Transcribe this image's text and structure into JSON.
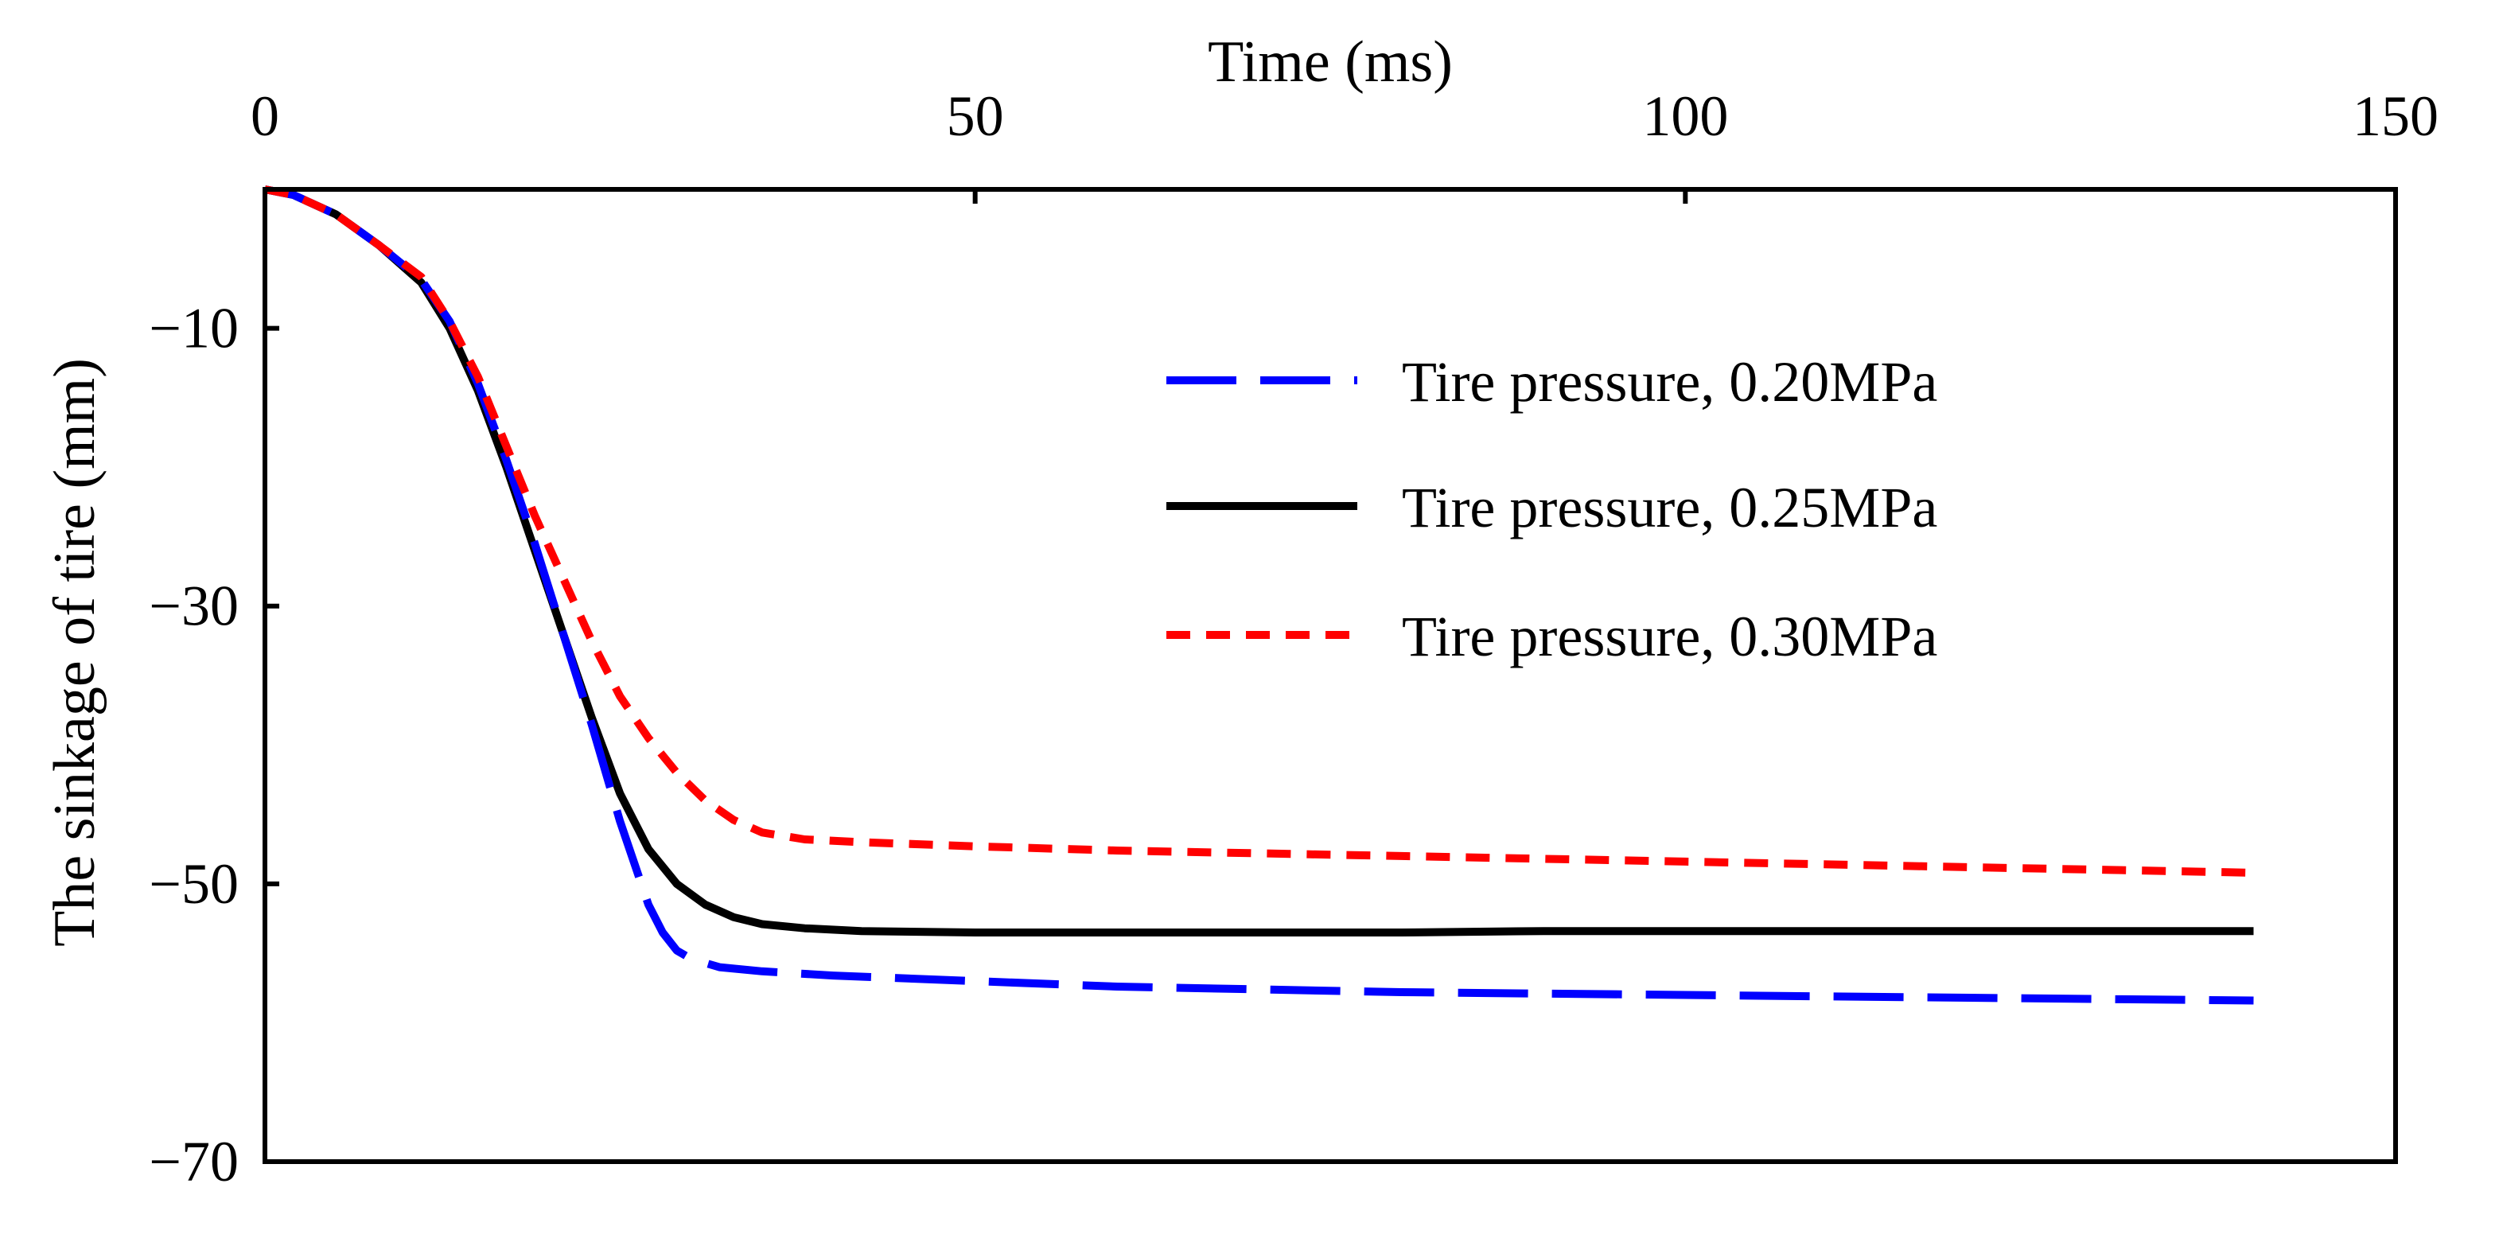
{
  "chart_data": {
    "type": "line",
    "title": "",
    "xlabel": "Time (ms)",
    "ylabel": "The sinkage of tire (mm)",
    "xlim": [
      0,
      150
    ],
    "ylim": [
      -70,
      0
    ],
    "xticks": [
      0,
      50,
      100,
      150
    ],
    "yticks": [
      -10,
      -30,
      -50,
      -70
    ],
    "xtick_labels": [
      "0",
      "50",
      "100",
      "150"
    ],
    "ytick_labels": [
      "−10",
      "−30",
      "−50",
      "−70"
    ],
    "x_axis_position": "top",
    "grid": false,
    "legend_position": "upper-right",
    "series": [
      {
        "name": "Tire pressure, 0.20MPa",
        "color": "#0000ff",
        "dash": "long-dash",
        "x": [
          0,
          2,
          5,
          8,
          11,
          13,
          15,
          17,
          19,
          21,
          23,
          25,
          27,
          28,
          29,
          30,
          32,
          35,
          40,
          50,
          60,
          70,
          80,
          90,
          100,
          110,
          120,
          130,
          140
        ],
        "y": [
          0,
          -0.4,
          -1.8,
          -4,
          -6.5,
          -9.5,
          -14,
          -19.5,
          -25.5,
          -32,
          -38.5,
          -45.5,
          -51.5,
          -53.5,
          -54.8,
          -55.4,
          -56,
          -56.3,
          -56.6,
          -57,
          -57.4,
          -57.6,
          -57.8,
          -57.9,
          -58,
          -58.1,
          -58.2,
          -58.3,
          -58.4
        ]
      },
      {
        "name": "Tire pressure, 0.25MPa",
        "color": "#000000",
        "dash": "solid",
        "x": [
          0,
          2,
          5,
          8,
          11,
          13,
          15,
          17,
          19,
          21,
          23,
          25,
          27,
          29,
          31,
          33,
          35,
          38,
          42,
          50,
          60,
          70,
          80,
          90,
          100,
          110,
          120,
          130,
          140
        ],
        "y": [
          0,
          -0.4,
          -1.8,
          -4,
          -6.7,
          -10,
          -14.5,
          -20,
          -26,
          -32,
          -38,
          -43.5,
          -47.5,
          -50,
          -51.5,
          -52.4,
          -52.9,
          -53.2,
          -53.4,
          -53.5,
          -53.5,
          -53.5,
          -53.5,
          -53.4,
          -53.4,
          -53.4,
          -53.4,
          -53.4,
          -53.4
        ]
      },
      {
        "name": "Tire pressure, 0.30MPa",
        "color": "#ff0000",
        "dash": "short-dash",
        "x": [
          0,
          2,
          5,
          8,
          11,
          13,
          15,
          17,
          19,
          21,
          23,
          25,
          27,
          29,
          31,
          33,
          35,
          38,
          42,
          50,
          60,
          70,
          80,
          90,
          100,
          110,
          120,
          130,
          140
        ],
        "y": [
          0,
          -0.4,
          -1.8,
          -4,
          -6.3,
          -9.5,
          -13.5,
          -18.5,
          -23.5,
          -28,
          -32.5,
          -36.5,
          -39.5,
          -42,
          -44,
          -45.4,
          -46.3,
          -46.8,
          -47,
          -47.3,
          -47.6,
          -47.8,
          -48,
          -48.2,
          -48.4,
          -48.6,
          -48.8,
          -49,
          -49.2
        ]
      }
    ]
  }
}
